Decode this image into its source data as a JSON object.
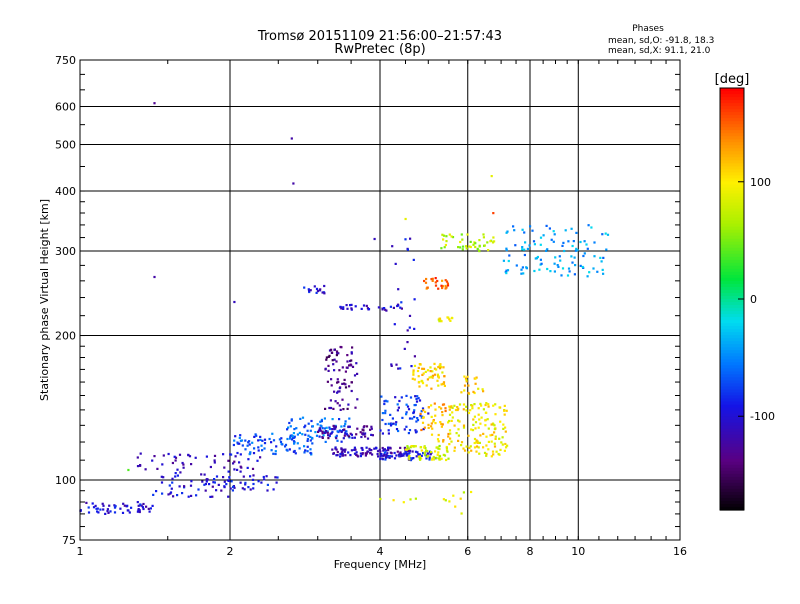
{
  "chart_data": {
    "type": "scatter",
    "title": "Tromsø 20151109 21:56:00–21:57:43",
    "subtitle": "RwPretec (8p)",
    "xlabel": "Frequency [MHz]",
    "ylabel": "Stationary phase Virtual Height [km]",
    "x_scale": "log2",
    "y_scale": "log",
    "xlim": [
      1,
      16
    ],
    "ylim": [
      75,
      750
    ],
    "x_ticks": [
      1,
      2,
      4,
      6,
      8,
      10,
      16
    ],
    "x_tick_labels": [
      "1",
      "2",
      "4",
      "6",
      "8",
      "10",
      "16"
    ],
    "y_ticks": [
      75,
      100,
      200,
      300,
      400,
      500,
      600,
      750
    ],
    "y_tick_labels": [
      "75",
      "100",
      "200",
      "300",
      "400",
      "500",
      "600",
      "750"
    ],
    "grid": true,
    "info": {
      "title": "Phases",
      "line_o": "mean, sd,O: -91.8, 18.3",
      "line_x": "mean, sd,X:  91.1, 21.0"
    },
    "colorbar": {
      "label": "[deg]",
      "min": -180,
      "max": 180,
      "ticks": [
        100,
        0,
        -100
      ],
      "tick_labels": [
        "100",
        "0",
        "-100"
      ]
    },
    "clusters": [
      {
        "x": [
          1.0,
          1.4
        ],
        "y": [
          85,
          90
        ],
        "phase": -100,
        "n": 55
      },
      {
        "x": [
          1.4,
          2.0
        ],
        "y": [
          92,
          104
        ],
        "phase": -100,
        "n": 60
      },
      {
        "x": [
          2.0,
          2.5
        ],
        "y": [
          95,
          103
        ],
        "phase": -95,
        "n": 30
      },
      {
        "x": [
          1.3,
          2.3
        ],
        "y": [
          104,
          114
        ],
        "phase": -110,
        "n": 50
      },
      {
        "x": [
          2.0,
          3.0
        ],
        "y": [
          113,
          125
        ],
        "phase": -70,
        "n": 90
      },
      {
        "x": [
          2.6,
          3.5
        ],
        "y": [
          120,
          135
        ],
        "phase": -60,
        "n": 70
      },
      {
        "x": [
          3.0,
          3.9
        ],
        "y": [
          122,
          130
        ],
        "phase": -120,
        "n": 60
      },
      {
        "x": [
          3.1,
          3.6
        ],
        "y": [
          140,
          190
        ],
        "phase": -130,
        "n": 80
      },
      {
        "x": [
          3.2,
          4.6
        ],
        "y": [
          112,
          117
        ],
        "phase": -110,
        "n": 110
      },
      {
        "x": [
          4.0,
          5.2
        ],
        "y": [
          110,
          115
        ],
        "phase": -90,
        "n": 50
      },
      {
        "x": [
          4.0,
          5.0
        ],
        "y": [
          125,
          150
        ],
        "phase": -80,
        "n": 70
      },
      {
        "x": [
          4.5,
          5.5
        ],
        "y": [
          110,
          118
        ],
        "phase": 80,
        "n": 60
      },
      {
        "x": [
          4.6,
          5.4
        ],
        "y": [
          155,
          175
        ],
        "phase": 110,
        "n": 60
      },
      {
        "x": [
          4.8,
          5.6
        ],
        "y": [
          120,
          145
        ],
        "phase": 120,
        "n": 50
      },
      {
        "x": [
          5.5,
          7.2
        ],
        "y": [
          112,
          145
        ],
        "phase": 100,
        "n": 140
      },
      {
        "x": [
          5.8,
          6.5
        ],
        "y": [
          150,
          165
        ],
        "phase": 110,
        "n": 20
      },
      {
        "x": [
          2.8,
          3.3
        ],
        "y": [
          245,
          255
        ],
        "phase": -100,
        "n": 15
      },
      {
        "x": [
          3.3,
          4.5
        ],
        "y": [
          225,
          232
        ],
        "phase": -110,
        "n": 30
      },
      {
        "x": [
          4.9,
          5.5
        ],
        "y": [
          250,
          265
        ],
        "phase": 150,
        "n": 25
      },
      {
        "x": [
          5.2,
          5.6
        ],
        "y": [
          213,
          220
        ],
        "phase": 90,
        "n": 12
      },
      {
        "x": [
          5.2,
          6.8
        ],
        "y": [
          300,
          325
        ],
        "phase": 70,
        "n": 45
      },
      {
        "x": [
          7.0,
          11.5
        ],
        "y": [
          265,
          340
        ],
        "phase": -40,
        "n": 110
      },
      {
        "x": [
          4.2,
          4.7
        ],
        "y": [
          170,
          320
        ],
        "phase": -100,
        "n": 25
      },
      {
        "x": [
          4.0,
          6.5
        ],
        "y": [
          85,
          95
        ],
        "phase": 90,
        "n": 14
      }
    ],
    "isolated_points": [
      {
        "x": 1.41,
        "y": 610,
        "phase": -130
      },
      {
        "x": 1.41,
        "y": 265,
        "phase": -120
      },
      {
        "x": 2.66,
        "y": 515,
        "phase": -120
      },
      {
        "x": 2.68,
        "y": 415,
        "phase": -120
      },
      {
        "x": 2.04,
        "y": 235,
        "phase": -110
      },
      {
        "x": 4.5,
        "y": 350,
        "phase": 90
      },
      {
        "x": 6.7,
        "y": 430,
        "phase": 90
      },
      {
        "x": 6.75,
        "y": 360,
        "phase": 160
      },
      {
        "x": 3.9,
        "y": 318,
        "phase": -110
      },
      {
        "x": 1.25,
        "y": 105,
        "phase": 40
      }
    ]
  }
}
